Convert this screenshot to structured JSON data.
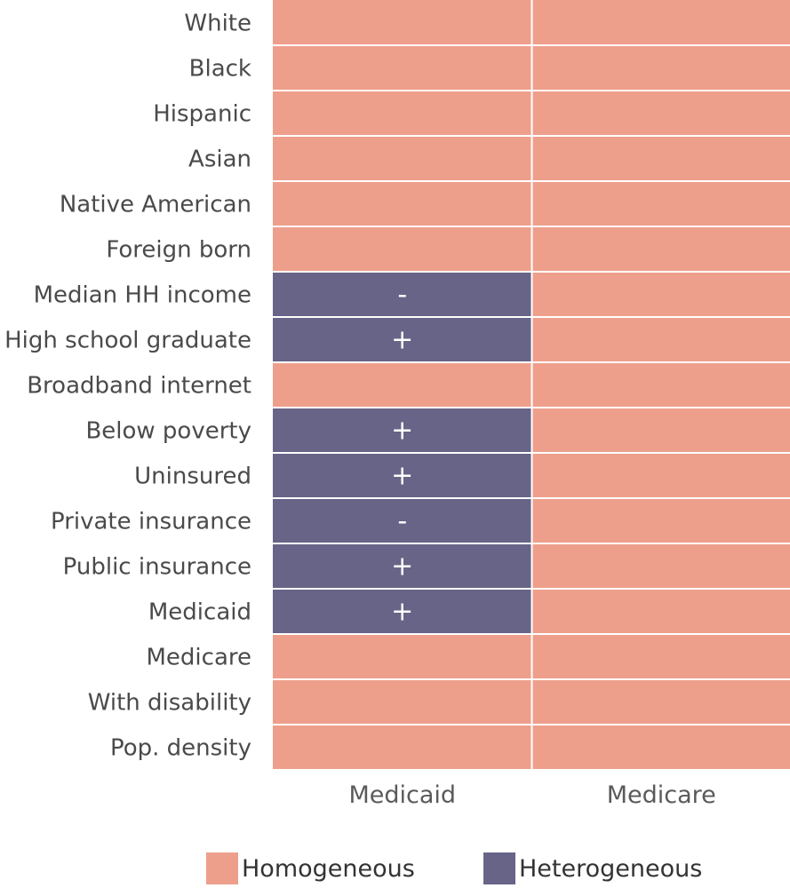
{
  "chart_data": {
    "type": "heatmap",
    "title": "",
    "columns": [
      "Medicaid",
      "Medicare"
    ],
    "rows": [
      "White",
      "Black",
      "Hispanic",
      "Asian",
      "Native American",
      "Foreign born",
      "Median HH income",
      "High school graduate",
      "Broadband internet",
      "Below poverty",
      "Uninsured",
      "Private insurance",
      "Public insurance",
      "Medicaid",
      "Medicare",
      "With disability",
      "Pop. density"
    ],
    "cells": [
      [
        {
          "category": "Homogeneous",
          "sign": ""
        },
        {
          "category": "Homogeneous",
          "sign": ""
        }
      ],
      [
        {
          "category": "Homogeneous",
          "sign": ""
        },
        {
          "category": "Homogeneous",
          "sign": ""
        }
      ],
      [
        {
          "category": "Homogeneous",
          "sign": ""
        },
        {
          "category": "Homogeneous",
          "sign": ""
        }
      ],
      [
        {
          "category": "Homogeneous",
          "sign": ""
        },
        {
          "category": "Homogeneous",
          "sign": ""
        }
      ],
      [
        {
          "category": "Homogeneous",
          "sign": ""
        },
        {
          "category": "Homogeneous",
          "sign": ""
        }
      ],
      [
        {
          "category": "Homogeneous",
          "sign": ""
        },
        {
          "category": "Homogeneous",
          "sign": ""
        }
      ],
      [
        {
          "category": "Heterogeneous",
          "sign": "-"
        },
        {
          "category": "Homogeneous",
          "sign": ""
        }
      ],
      [
        {
          "category": "Heterogeneous",
          "sign": "+"
        },
        {
          "category": "Homogeneous",
          "sign": ""
        }
      ],
      [
        {
          "category": "Homogeneous",
          "sign": ""
        },
        {
          "category": "Homogeneous",
          "sign": ""
        }
      ],
      [
        {
          "category": "Heterogeneous",
          "sign": "+"
        },
        {
          "category": "Homogeneous",
          "sign": ""
        }
      ],
      [
        {
          "category": "Heterogeneous",
          "sign": "+"
        },
        {
          "category": "Homogeneous",
          "sign": ""
        }
      ],
      [
        {
          "category": "Heterogeneous",
          "sign": "-"
        },
        {
          "category": "Homogeneous",
          "sign": ""
        }
      ],
      [
        {
          "category": "Heterogeneous",
          "sign": "+"
        },
        {
          "category": "Homogeneous",
          "sign": ""
        }
      ],
      [
        {
          "category": "Heterogeneous",
          "sign": "+"
        },
        {
          "category": "Homogeneous",
          "sign": ""
        }
      ],
      [
        {
          "category": "Homogeneous",
          "sign": ""
        },
        {
          "category": "Homogeneous",
          "sign": ""
        }
      ],
      [
        {
          "category": "Homogeneous",
          "sign": ""
        },
        {
          "category": "Homogeneous",
          "sign": ""
        }
      ],
      [
        {
          "category": "Homogeneous",
          "sign": ""
        },
        {
          "category": "Homogeneous",
          "sign": ""
        }
      ]
    ],
    "legend": [
      {
        "label": "Homogeneous",
        "color": "#EE9F8B"
      },
      {
        "label": "Heterogeneous",
        "color": "#676488"
      }
    ],
    "legend_position": "bottom",
    "grid": false
  }
}
